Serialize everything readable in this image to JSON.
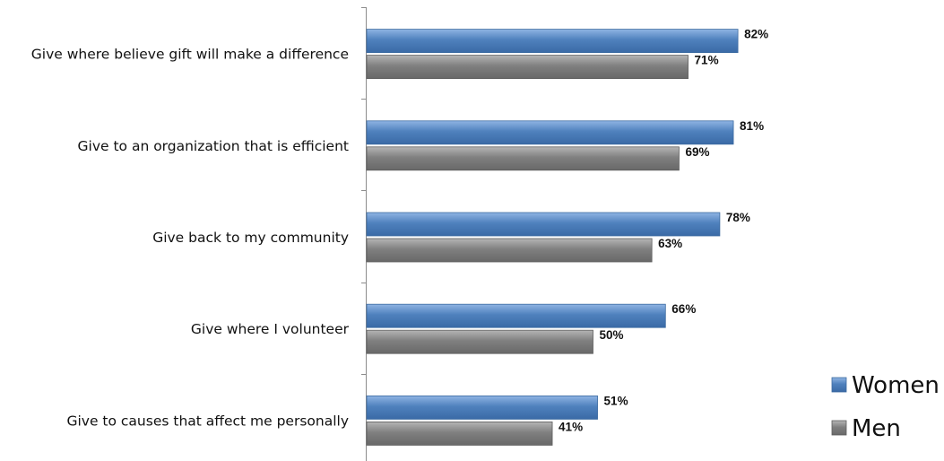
{
  "chart_data": {
    "type": "bar",
    "orientation": "horizontal",
    "categories": [
      "Give where believe gift will make a difference",
      "Give to an organization that is efficient",
      "Give back to my community",
      "Give where I volunteer",
      "Give to causes that affect me personally"
    ],
    "series": [
      {
        "name": "Women",
        "values": [
          82,
          81,
          78,
          66,
          51
        ],
        "labels": [
          "82%",
          "81%",
          "78%",
          "66%",
          "51%"
        ],
        "color": "#4F81BD"
      },
      {
        "name": "Men",
        "values": [
          71,
          69,
          63,
          50,
          41
        ],
        "labels": [
          "71%",
          "69%",
          "63%",
          "50%",
          "41%"
        ],
        "color": "#808080"
      }
    ],
    "title": "",
    "xlabel": "",
    "ylabel": "",
    "xlim": [
      0,
      100
    ],
    "grid": false,
    "legend_position": "bottom-right"
  }
}
